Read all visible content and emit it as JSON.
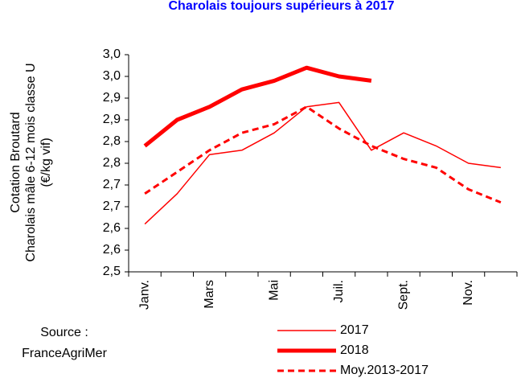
{
  "chart_data": {
    "type": "line",
    "title": "Charolais toujours supérieurs à 2017",
    "y_label": [
      "Cotation Broutard",
      "Charolais mâle 6-12 mois classe U",
      "(€/kg vif)"
    ],
    "source": [
      "Source :",
      "FranceAgriMer"
    ],
    "categories": [
      "Janv.",
      null,
      "Mars",
      null,
      "Mai",
      null,
      "Juil.",
      null,
      "Sept.",
      null,
      "Nov.",
      null
    ],
    "series": [
      {
        "name": "2017",
        "color": "#ff0000",
        "width": 1.5,
        "dash": false,
        "values": [
          2.61,
          2.68,
          2.77,
          2.78,
          2.82,
          2.88,
          2.89,
          2.78,
          2.82,
          2.79,
          2.75,
          2.74
        ]
      },
      {
        "name": "2018",
        "color": "#ff0000",
        "width": 5,
        "dash": false,
        "values": [
          2.79,
          2.85,
          2.88,
          2.92,
          2.94,
          2.97,
          2.95,
          2.94,
          null,
          null,
          null,
          null
        ]
      },
      {
        "name": "Moy.2013-2017",
        "color": "#ff0000",
        "width": 3,
        "dash": true,
        "values": [
          2.68,
          2.73,
          2.78,
          2.82,
          2.84,
          2.88,
          2.83,
          2.79,
          2.76,
          2.74,
          2.69,
          2.66
        ]
      }
    ],
    "ylim": [
      2.5,
      3.0
    ],
    "yticks": [
      {
        "value": 2.5,
        "label": "2,5"
      },
      {
        "value": 2.55,
        "label": "2,6"
      },
      {
        "value": 2.6,
        "label": "2,6"
      },
      {
        "value": 2.65,
        "label": "2,7"
      },
      {
        "value": 2.7,
        "label": "2,7"
      },
      {
        "value": 2.75,
        "label": "2,8"
      },
      {
        "value": 2.8,
        "label": "2,8"
      },
      {
        "value": 2.85,
        "label": "2,9"
      },
      {
        "value": 2.9,
        "label": "2,9"
      },
      {
        "value": 2.95,
        "label": "3,0"
      },
      {
        "value": 3.0,
        "label": "3,0"
      }
    ],
    "grid": false
  }
}
